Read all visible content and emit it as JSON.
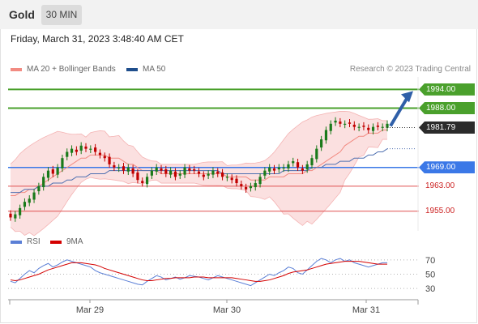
{
  "header": {
    "instrument": "Gold",
    "timeframe": "30 MIN"
  },
  "datetime": "Friday, March 31, 2023 3:48:40 AM CET",
  "legend": [
    {
      "label": "MA 20 + Bollinger Bands",
      "color": "#f28b82"
    },
    {
      "label": "MA 50",
      "color": "#1f4e8c"
    }
  ],
  "credit": "Research © 2023 Trading Central",
  "rsi_legend": [
    {
      "label": "RSI",
      "color": "#5b7fd6"
    },
    {
      "label": "9MA",
      "color": "#d40000"
    }
  ],
  "colors": {
    "up": "#1a7a1a",
    "down": "#c00000",
    "resistance": "#4aa02c",
    "support": "#3b78e7",
    "target": "#2f5fa8",
    "band": "#f9d6d6"
  },
  "chart_data": [
    {
      "type": "candlestick",
      "ylim": [
        1950,
        1998
      ],
      "x_ticks": [
        "Mar 29",
        "Mar 30",
        "Mar 31"
      ],
      "close_series": [
        1953,
        1954,
        1956,
        1958,
        1959,
        1961,
        1963,
        1966,
        1968,
        1967,
        1969,
        1972,
        1974,
        1975,
        1974,
        1976,
        1975,
        1975,
        1974,
        1973,
        1972,
        1970,
        1969,
        1969,
        1968,
        1969,
        1967,
        1965,
        1964,
        1966,
        1968,
        1969,
        1968,
        1967,
        1968,
        1966,
        1967,
        1969,
        1968,
        1968,
        1967,
        1966,
        1967,
        1968,
        1967,
        1966,
        1966,
        1965,
        1964,
        1963,
        1962,
        1963,
        1964,
        1966,
        1968,
        1969,
        1968,
        1969,
        1969,
        1970,
        1971,
        1969,
        1968,
        1970,
        1972,
        1975,
        1978,
        1981,
        1983,
        1984,
        1983,
        1983,
        1983,
        1982,
        1982,
        1982,
        1981,
        1982,
        1982,
        1982,
        1983
      ],
      "ma20": [
        1960,
        1960,
        1961,
        1961,
        1962,
        1962,
        1963,
        1964,
        1965,
        1966,
        1967,
        1968,
        1969,
        1970,
        1971,
        1972,
        1972,
        1973,
        1973,
        1973,
        1973,
        1972,
        1972,
        1972,
        1971,
        1970,
        1970,
        1969,
        1968,
        1968,
        1968,
        1968,
        1967,
        1967,
        1967,
        1967,
        1967,
        1967,
        1967,
        1967,
        1967,
        1967,
        1967,
        1967,
        1967,
        1967,
        1966,
        1966,
        1966,
        1966,
        1966,
        1965,
        1965,
        1965,
        1965,
        1966,
        1966,
        1966,
        1966,
        1967,
        1967,
        1967,
        1967,
        1968,
        1968,
        1969,
        1970,
        1971,
        1972,
        1973,
        1974,
        1976,
        1977,
        1978,
        1979,
        1979,
        1980,
        1980,
        1980,
        1981,
        1981
      ],
      "ma50": [
        1961,
        1961,
        1961,
        1962,
        1962,
        1962,
        1963,
        1963,
        1963,
        1964,
        1964,
        1964,
        1965,
        1965,
        1966,
        1966,
        1966,
        1967,
        1967,
        1967,
        1967,
        1968,
        1968,
        1968,
        1968,
        1968,
        1968,
        1968,
        1968,
        1968,
        1968,
        1968,
        1968,
        1968,
        1968,
        1968,
        1968,
        1968,
        1968,
        1968,
        1968,
        1968,
        1968,
        1968,
        1968,
        1967,
        1967,
        1967,
        1967,
        1967,
        1967,
        1967,
        1967,
        1967,
        1967,
        1967,
        1967,
        1967,
        1968,
        1968,
        1968,
        1968,
        1968,
        1968,
        1969,
        1969,
        1969,
        1970,
        1970,
        1970,
        1971,
        1971,
        1971,
        1972,
        1972,
        1972,
        1973,
        1973,
        1974,
        1974,
        1975
      ],
      "last_price": 1981.79,
      "levels": [
        {
          "label": "1994.00",
          "value": 1994.0,
          "kind": "resistance"
        },
        {
          "label": "1988.00",
          "value": 1988.0,
          "kind": "resistance"
        },
        {
          "label": "1969.00",
          "value": 1969.0,
          "kind": "pivot"
        },
        {
          "label": "1963.00",
          "value": 1963.0,
          "kind": "support"
        },
        {
          "label": "1955.00",
          "value": 1955.0,
          "kind": "support"
        }
      ],
      "last_label": "1981.79"
    },
    {
      "type": "line",
      "ylim": [
        20,
        80
      ],
      "y_ticks": [
        "70",
        "50",
        "30"
      ],
      "series": [
        {
          "name": "RSI",
          "values": [
            40,
            38,
            44,
            50,
            55,
            52,
            58,
            62,
            65,
            60,
            63,
            67,
            70,
            68,
            66,
            64,
            62,
            60,
            55,
            52,
            50,
            48,
            46,
            44,
            42,
            40,
            38,
            36,
            35,
            40,
            44,
            48,
            46,
            42,
            44,
            46,
            43,
            45,
            48,
            47,
            46,
            44,
            42,
            45,
            48,
            46,
            44,
            42,
            40,
            38,
            36,
            34,
            38,
            42,
            46,
            50,
            48,
            52,
            55,
            60,
            58,
            52,
            50,
            56,
            62,
            68,
            72,
            70,
            66,
            70,
            72,
            68,
            70,
            66,
            64,
            62,
            60,
            62,
            64,
            66,
            66
          ]
        },
        {
          "name": "9MA",
          "values": [
            42,
            41,
            42,
            44,
            46,
            48,
            50,
            53,
            56,
            58,
            60,
            62,
            64,
            66,
            66,
            66,
            65,
            64,
            63,
            61,
            58,
            56,
            54,
            52,
            50,
            48,
            46,
            44,
            42,
            41,
            41,
            42,
            43,
            44,
            44,
            45,
            45,
            45,
            45,
            46,
            46,
            46,
            45,
            45,
            45,
            45,
            45,
            45,
            44,
            43,
            42,
            41,
            40,
            40,
            41,
            42,
            44,
            46,
            48,
            51,
            53,
            54,
            55,
            56,
            58,
            60,
            62,
            64,
            65,
            66,
            67,
            68,
            68,
            68,
            68,
            67,
            66,
            65,
            64,
            64,
            64
          ]
        }
      ]
    }
  ]
}
